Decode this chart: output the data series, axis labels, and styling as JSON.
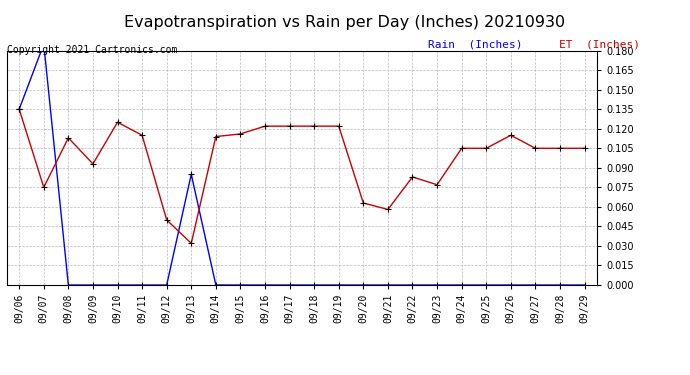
{
  "title": "Evapotranspiration vs Rain per Day (Inches) 20210930",
  "copyright": "Copyright 2021 Cartronics.com",
  "legend_rain": "Rain  (Inches)",
  "legend_et": "ET  (Inches)",
  "x_labels": [
    "09/06",
    "09/07",
    "09/08",
    "09/09",
    "09/10",
    "09/11",
    "09/12",
    "09/13",
    "09/14",
    "09/15",
    "09/16",
    "09/17",
    "09/18",
    "09/19",
    "09/20",
    "09/21",
    "09/22",
    "09/23",
    "09/24",
    "09/25",
    "09/26",
    "09/27",
    "09/28",
    "09/29"
  ],
  "rain_data": [
    0.135,
    0.185,
    0.0,
    0.0,
    0.0,
    0.0,
    0.0,
    0.085,
    0.0,
    0.0,
    0.0,
    0.0,
    0.0,
    0.0,
    0.0,
    0.0,
    0.0,
    0.0,
    0.0,
    0.0,
    0.0,
    0.0,
    0.0,
    0.0
  ],
  "et_data": [
    0.135,
    0.075,
    0.113,
    0.093,
    0.125,
    0.115,
    0.05,
    0.032,
    0.114,
    0.116,
    0.122,
    0.122,
    0.122,
    0.122,
    0.063,
    0.058,
    0.083,
    0.077,
    0.105,
    0.105,
    0.115,
    0.105,
    0.105,
    0.105
  ],
  "ylim_min": 0.0,
  "ylim_max": 0.18,
  "yticks": [
    0.0,
    0.015,
    0.03,
    0.045,
    0.06,
    0.075,
    0.09,
    0.105,
    0.12,
    0.135,
    0.15,
    0.165,
    0.18
  ],
  "rain_color": "#0000ff",
  "et_color": "#cc0000",
  "marker_color": "#000000",
  "bg_color": "#ffffff",
  "grid_color": "#bbbbbb",
  "title_fontsize": 11.5,
  "label_fontsize": 8,
  "tick_fontsize": 7,
  "copyright_fontsize": 7
}
